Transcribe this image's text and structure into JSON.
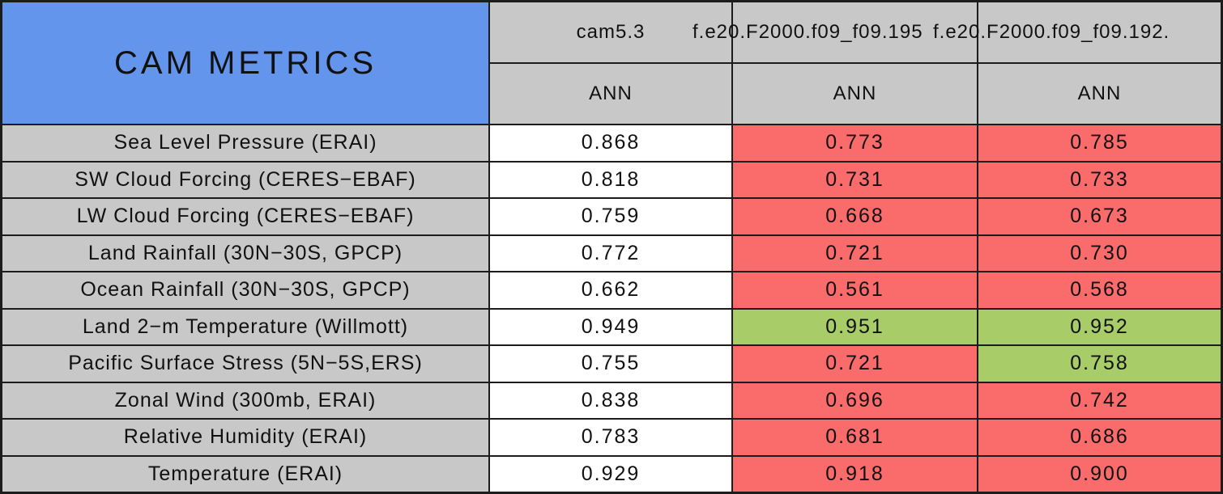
{
  "chart_data": {
    "type": "table",
    "title": "CAM METRICS",
    "columns": [
      {
        "name": "cam5.3",
        "subheader": "ANN"
      },
      {
        "name": "f.e20.F2000.f09_f09.195",
        "subheader": "ANN"
      },
      {
        "name": "f.e20.F2000.f09_f09.192.",
        "subheader": "ANN"
      }
    ],
    "rows": [
      {
        "label": "Sea Level Pressure (ERAI)",
        "values": [
          "0.868",
          "0.773",
          "0.785"
        ],
        "colors": [
          "white",
          "red",
          "red"
        ]
      },
      {
        "label": "SW Cloud Forcing (CERES−EBAF)",
        "values": [
          "0.818",
          "0.731",
          "0.733"
        ],
        "colors": [
          "white",
          "red",
          "red"
        ]
      },
      {
        "label": "LW Cloud Forcing (CERES−EBAF)",
        "values": [
          "0.759",
          "0.668",
          "0.673"
        ],
        "colors": [
          "white",
          "red",
          "red"
        ]
      },
      {
        "label": "Land Rainfall (30N−30S, GPCP)",
        "values": [
          "0.772",
          "0.721",
          "0.730"
        ],
        "colors": [
          "white",
          "red",
          "red"
        ]
      },
      {
        "label": "Ocean Rainfall (30N−30S, GPCP)",
        "values": [
          "0.662",
          "0.561",
          "0.568"
        ],
        "colors": [
          "white",
          "red",
          "red"
        ]
      },
      {
        "label": "Land 2−m Temperature (Willmott)",
        "values": [
          "0.949",
          "0.951",
          "0.952"
        ],
        "colors": [
          "white",
          "green",
          "green"
        ]
      },
      {
        "label": "Pacific Surface Stress (5N−5S,ERS)",
        "values": [
          "0.755",
          "0.721",
          "0.758"
        ],
        "colors": [
          "white",
          "red",
          "green"
        ]
      },
      {
        "label": "Zonal Wind (300mb, ERAI)",
        "values": [
          "0.838",
          "0.696",
          "0.742"
        ],
        "colors": [
          "white",
          "red",
          "red"
        ]
      },
      {
        "label": "Relative Humidity (ERAI)",
        "values": [
          "0.783",
          "0.681",
          "0.686"
        ],
        "colors": [
          "white",
          "red",
          "red"
        ]
      },
      {
        "label": "Temperature (ERAI)",
        "values": [
          "0.929",
          "0.918",
          "0.900"
        ],
        "colors": [
          "white",
          "red",
          "red"
        ]
      }
    ]
  },
  "colors": {
    "header_blue": "#6495ED",
    "cell_gray": "#C8C8C8",
    "white": "#FFFFFF",
    "red": "#FA6B6B",
    "green": "#A8CC68",
    "border": "#1C1C1C"
  }
}
